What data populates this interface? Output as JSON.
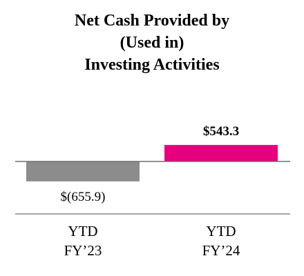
{
  "chart_data": {
    "type": "bar",
    "title_lines": [
      "Net Cash Provided by",
      "(Used in)",
      "Investing Activities"
    ],
    "categories": [
      [
        "YTD",
        "FY’23"
      ],
      [
        "YTD",
        "FY’24"
      ]
    ],
    "values": [
      -655.9,
      543.3
    ],
    "value_labels": [
      "$(655.9)",
      "$543.3"
    ],
    "colors": [
      "#8c8c8c",
      "#e6007e"
    ],
    "value_label_colors": [
      "#000000",
      "#000000"
    ],
    "value_label_bold": [
      false,
      true
    ],
    "xlabel": "",
    "ylabel": "",
    "grid": false,
    "legend": "none"
  }
}
